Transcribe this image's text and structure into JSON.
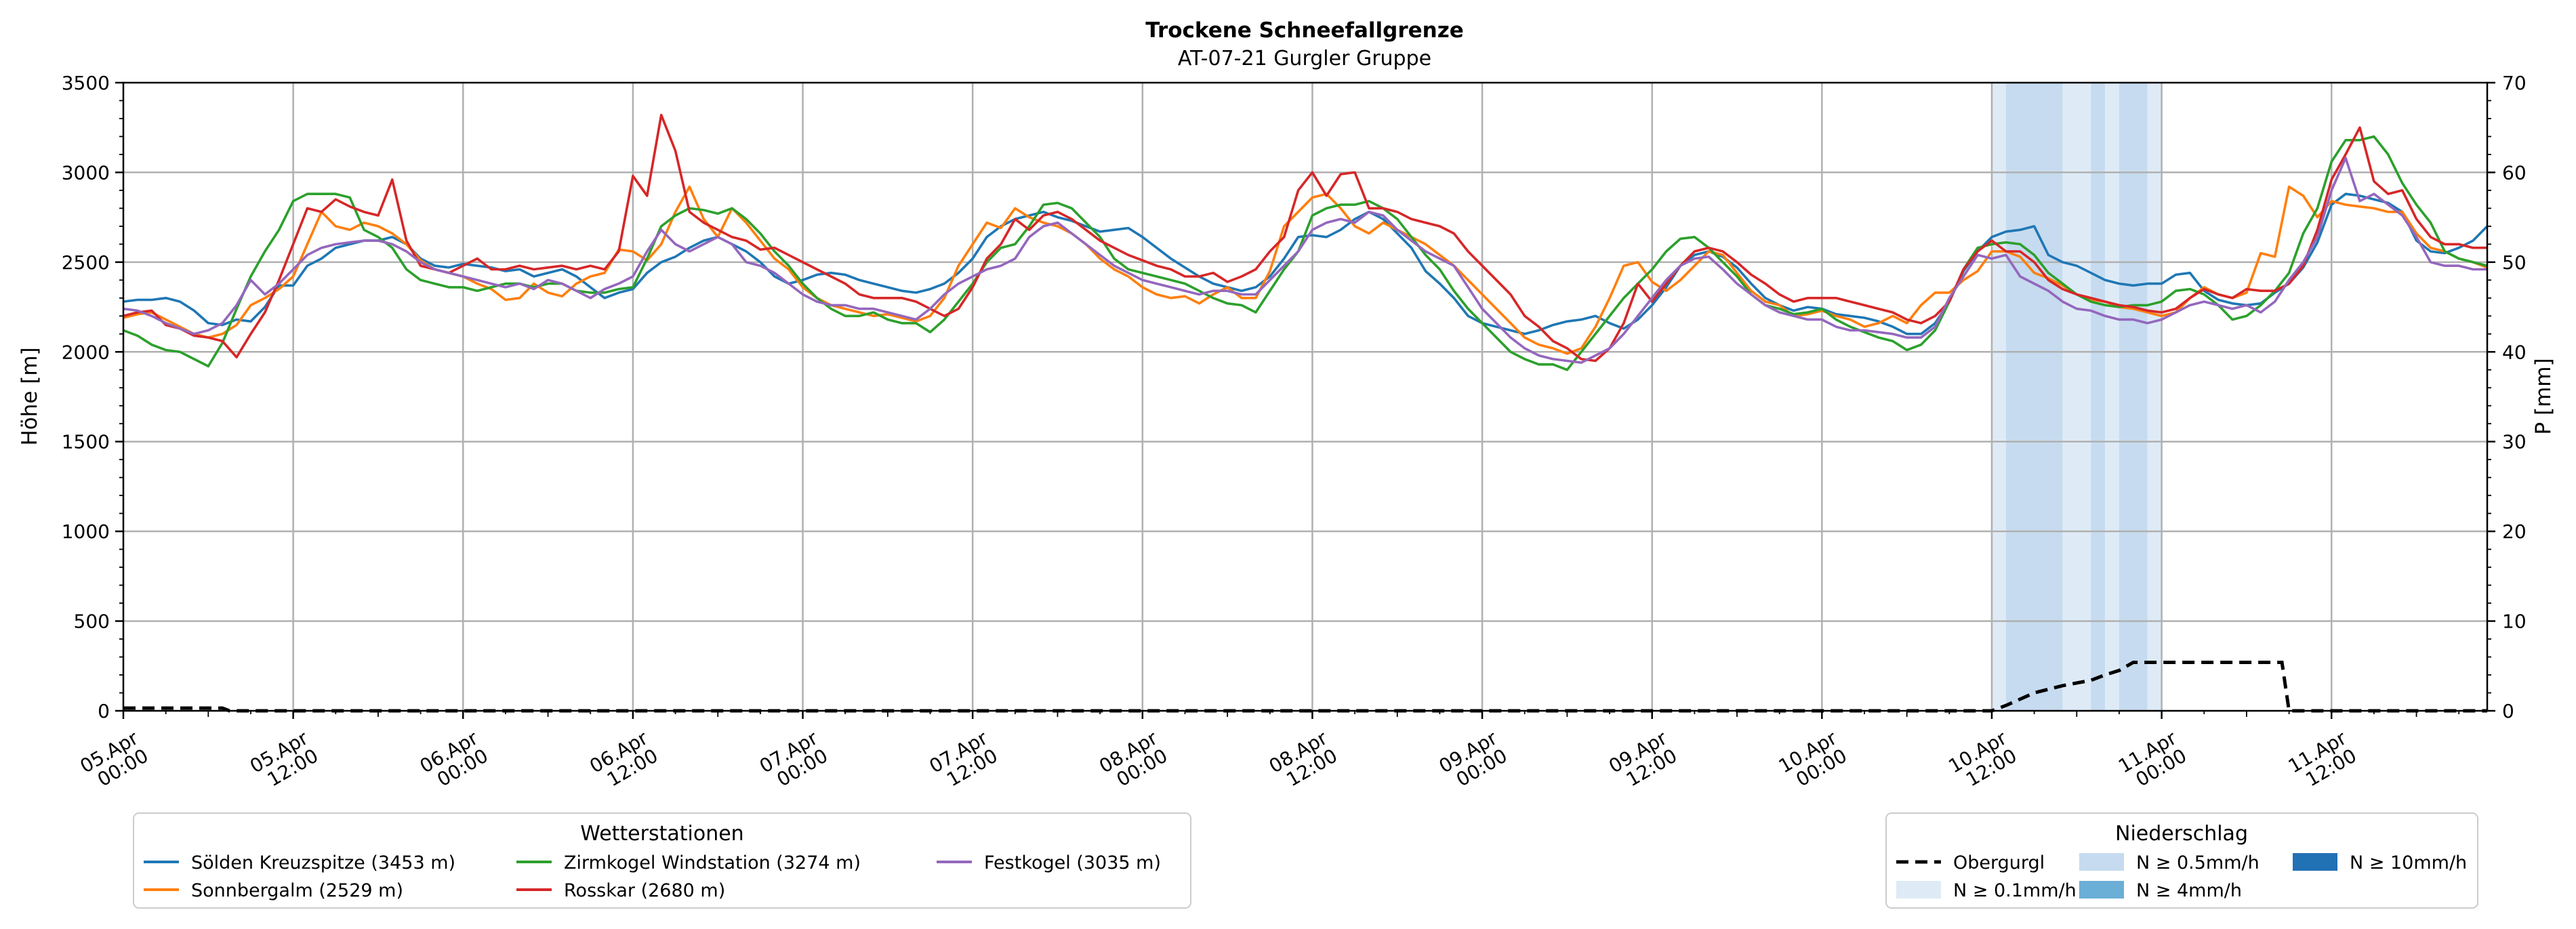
{
  "title": "Trockene Schneefallgrenze",
  "subtitle": "AT-07-21 Gurgler Gruppe",
  "chart_data": {
    "type": "line",
    "ylabel": "Höhe [m]",
    "y2label": "P [mm]",
    "ylim": [
      0,
      3500
    ],
    "y2lim": [
      0,
      70
    ],
    "yticks": [
      0,
      500,
      1000,
      1500,
      2000,
      2500,
      3000,
      3500
    ],
    "y2ticks": [
      0,
      10,
      20,
      30,
      40,
      50,
      60,
      70
    ],
    "xlim_hours": [
      0,
      167
    ],
    "grid": true,
    "x_ticks": [
      {
        "h": 0,
        "date": "05.Apr",
        "time": "00:00"
      },
      {
        "h": 12,
        "date": "05.Apr",
        "time": "12:00"
      },
      {
        "h": 24,
        "date": "06.Apr",
        "time": "00:00"
      },
      {
        "h": 36,
        "date": "06.Apr",
        "time": "12:00"
      },
      {
        "h": 48,
        "date": "07.Apr",
        "time": "00:00"
      },
      {
        "h": 60,
        "date": "07.Apr",
        "time": "12:00"
      },
      {
        "h": 72,
        "date": "08.Apr",
        "time": "00:00"
      },
      {
        "h": 84,
        "date": "08.Apr",
        "time": "12:00"
      },
      {
        "h": 96,
        "date": "09.Apr",
        "time": "00:00"
      },
      {
        "h": 108,
        "date": "09.Apr",
        "time": "12:00"
      },
      {
        "h": 120,
        "date": "10.Apr",
        "time": "00:00"
      },
      {
        "h": 132,
        "date": "10.Apr",
        "time": "12:00"
      },
      {
        "h": 144,
        "date": "11.Apr",
        "time": "00:00"
      },
      {
        "h": 156,
        "date": "11.Apr",
        "time": "12:00"
      }
    ],
    "legend_stations": {
      "title": "Wetterstationen",
      "placement": "bottom-left"
    },
    "legend_precip": {
      "title": "Niederschlag",
      "placement": "bottom-right",
      "entries": [
        {
          "label": "Obergurgl",
          "kind": "dashed-line",
          "color": "#000000"
        },
        {
          "label": "N ≥ 0.1mm/h",
          "kind": "patch",
          "color": "#deebf7"
        },
        {
          "label": "N ≥ 0.5mm/h",
          "kind": "patch",
          "color": "#c6dbef"
        },
        {
          "label": "N ≥ 4mm/h",
          "kind": "patch",
          "color": "#6baed6"
        },
        {
          "label": "N ≥ 10mm/h",
          "kind": "patch",
          "color": "#2171b5"
        }
      ]
    },
    "precip_bands": [
      {
        "start": 132.0,
        "end": 133.0,
        "level": "N ≥ 0.1mm/h"
      },
      {
        "start": 133.0,
        "end": 137.0,
        "level": "N ≥ 0.5mm/h"
      },
      {
        "start": 137.0,
        "end": 139.0,
        "level": "N ≥ 0.1mm/h"
      },
      {
        "start": 139.0,
        "end": 140.0,
        "level": "N ≥ 0.5mm/h"
      },
      {
        "start": 140.0,
        "end": 141.0,
        "level": "N ≥ 0.1mm/h"
      },
      {
        "start": 141.0,
        "end": 143.0,
        "level": "N ≥ 0.5mm/h"
      },
      {
        "start": 143.0,
        "end": 144.0,
        "level": "N ≥ 0.1mm/h"
      }
    ],
    "precip_cumulative": {
      "name": "Obergurgl",
      "points": [
        [
          0,
          0.3
        ],
        [
          7,
          0.3
        ],
        [
          7.5,
          0
        ],
        [
          132,
          0
        ],
        [
          133,
          0.6
        ],
        [
          135,
          2
        ],
        [
          137,
          2.8
        ],
        [
          139,
          3.4
        ],
        [
          140,
          4
        ],
        [
          141,
          4.5
        ],
        [
          142,
          5.4
        ],
        [
          144,
          5.4
        ],
        [
          150,
          5.4
        ],
        [
          152.5,
          5.4
        ],
        [
          153,
          0
        ],
        [
          167,
          0
        ]
      ]
    },
    "series": [
      {
        "name": "Sölden Kreuzspitze (3453 m)",
        "color": "#1f77b4",
        "values": [
          2280,
          2290,
          2290,
          2300,
          2280,
          2230,
          2160,
          2150,
          2180,
          2170,
          2250,
          2370,
          2370,
          2480,
          2520,
          2580,
          2600,
          2620,
          2620,
          2640,
          2600,
          2520,
          2480,
          2470,
          2490,
          2480,
          2470,
          2450,
          2460,
          2420,
          2440,
          2460,
          2420,
          2360,
          2300,
          2330,
          2350,
          2440,
          2500,
          2530,
          2580,
          2620,
          2640,
          2600,
          2560,
          2500,
          2420,
          2380,
          2400,
          2430,
          2440,
          2430,
          2400,
          2380,
          2360,
          2340,
          2330,
          2350,
          2380,
          2440,
          2520,
          2640,
          2700,
          2740,
          2760,
          2780,
          2750,
          2730,
          2700,
          2670,
          2680,
          2690,
          2640,
          2580,
          2520,
          2470,
          2420,
          2380,
          2360,
          2340,
          2360,
          2420,
          2520,
          2640,
          2650,
          2640,
          2680,
          2740,
          2780,
          2740,
          2660,
          2580,
          2450,
          2380,
          2300,
          2200,
          2160,
          2140,
          2120,
          2100,
          2120,
          2150,
          2170,
          2180,
          2200,
          2160,
          2130,
          2180,
          2260,
          2360,
          2480,
          2540,
          2560,
          2530,
          2470,
          2380,
          2300,
          2260,
          2230,
          2250,
          2240,
          2210,
          2200,
          2190,
          2170,
          2140,
          2100,
          2100,
          2160,
          2280,
          2450,
          2560,
          2640,
          2670,
          2680,
          2700,
          2540,
          2500,
          2480,
          2440,
          2400,
          2380,
          2370,
          2380,
          2380,
          2430,
          2440,
          2340,
          2290,
          2270,
          2260,
          2270,
          2330,
          2380,
          2470,
          2610,
          2820,
          2880,
          2870,
          2850,
          2830,
          2780,
          2620,
          2560,
          2550,
          2580,
          2620,
          2700
        ]
      },
      {
        "name": "Sonnbergalm (2529 m)",
        "color": "#ff7f0e",
        "values": [
          2190,
          2210,
          2220,
          2180,
          2140,
          2100,
          2080,
          2100,
          2150,
          2260,
          2300,
          2350,
          2420,
          2600,
          2780,
          2700,
          2680,
          2720,
          2700,
          2660,
          2600,
          2510,
          2460,
          2440,
          2420,
          2380,
          2350,
          2290,
          2300,
          2380,
          2330,
          2310,
          2380,
          2420,
          2440,
          2570,
          2560,
          2510,
          2600,
          2780,
          2920,
          2740,
          2640,
          2800,
          2720,
          2620,
          2520,
          2460,
          2360,
          2300,
          2260,
          2240,
          2220,
          2200,
          2210,
          2190,
          2170,
          2200,
          2300,
          2480,
          2600,
          2720,
          2690,
          2800,
          2750,
          2720,
          2700,
          2660,
          2600,
          2520,
          2460,
          2420,
          2360,
          2320,
          2300,
          2310,
          2270,
          2320,
          2360,
          2300,
          2300,
          2450,
          2700,
          2780,
          2860,
          2880,
          2800,
          2700,
          2660,
          2720,
          2680,
          2640,
          2600,
          2540,
          2480,
          2400,
          2320,
          2240,
          2160,
          2080,
          2040,
          2020,
          1990,
          2020,
          2140,
          2300,
          2480,
          2500,
          2390,
          2340,
          2400,
          2480,
          2560,
          2540,
          2440,
          2340,
          2280,
          2260,
          2200,
          2210,
          2230,
          2200,
          2180,
          2140,
          2160,
          2200,
          2160,
          2260,
          2330,
          2330,
          2400,
          2450,
          2560,
          2560,
          2530,
          2440,
          2410,
          2370,
          2320,
          2290,
          2280,
          2250,
          2240,
          2220,
          2200,
          2220,
          2300,
          2360,
          2320,
          2300,
          2330,
          2550,
          2530,
          2920,
          2870,
          2750,
          2840,
          2820,
          2810,
          2800,
          2780,
          2780,
          2660,
          2580,
          2560,
          2520,
          2500,
          2470
        ]
      },
      {
        "name": "Zirmkogel Windstation (3274 m)",
        "color": "#2ca02c",
        "values": [
          2120,
          2090,
          2040,
          2010,
          2000,
          1960,
          1920,
          2050,
          2240,
          2420,
          2560,
          2680,
          2840,
          2880,
          2880,
          2880,
          2860,
          2680,
          2640,
          2580,
          2460,
          2400,
          2380,
          2360,
          2360,
          2340,
          2360,
          2380,
          2380,
          2360,
          2380,
          2380,
          2340,
          2330,
          2330,
          2350,
          2360,
          2520,
          2700,
          2760,
          2800,
          2790,
          2770,
          2800,
          2740,
          2660,
          2560,
          2480,
          2380,
          2300,
          2240,
          2200,
          2200,
          2220,
          2180,
          2160,
          2160,
          2110,
          2180,
          2280,
          2380,
          2500,
          2580,
          2600,
          2700,
          2820,
          2830,
          2800,
          2720,
          2640,
          2520,
          2460,
          2440,
          2420,
          2400,
          2380,
          2340,
          2300,
          2270,
          2260,
          2220,
          2340,
          2460,
          2560,
          2760,
          2800,
          2820,
          2820,
          2840,
          2800,
          2740,
          2640,
          2540,
          2460,
          2340,
          2240,
          2160,
          2080,
          2000,
          1960,
          1930,
          1930,
          1900,
          2000,
          2100,
          2200,
          2300,
          2380,
          2460,
          2560,
          2630,
          2640,
          2580,
          2500,
          2420,
          2320,
          2260,
          2240,
          2210,
          2220,
          2240,
          2180,
          2140,
          2110,
          2080,
          2060,
          2010,
          2040,
          2120,
          2280,
          2460,
          2580,
          2600,
          2610,
          2600,
          2540,
          2440,
          2380,
          2320,
          2280,
          2260,
          2250,
          2260,
          2260,
          2280,
          2340,
          2350,
          2320,
          2260,
          2180,
          2200,
          2260,
          2340,
          2440,
          2660,
          2800,
          3060,
          3180,
          3180,
          3200,
          3100,
          2940,
          2820,
          2720,
          2560,
          2520,
          2500,
          2480
        ]
      },
      {
        "name": "Rosskar (2680 m)",
        "color": "#d62728",
        "values": [
          2200,
          2220,
          2230,
          2150,
          2130,
          2090,
          2080,
          2060,
          1970,
          2100,
          2220,
          2400,
          2600,
          2800,
          2780,
          2850,
          2810,
          2780,
          2760,
          2960,
          2620,
          2480,
          2460,
          2440,
          2480,
          2520,
          2460,
          2460,
          2480,
          2460,
          2470,
          2480,
          2460,
          2480,
          2460,
          2560,
          2980,
          2870,
          3320,
          3120,
          2780,
          2720,
          2680,
          2640,
          2620,
          2570,
          2580,
          2540,
          2500,
          2460,
          2420,
          2380,
          2320,
          2300,
          2300,
          2300,
          2280,
          2240,
          2200,
          2240,
          2360,
          2520,
          2600,
          2740,
          2680,
          2760,
          2780,
          2740,
          2680,
          2620,
          2580,
          2540,
          2510,
          2480,
          2460,
          2420,
          2420,
          2440,
          2390,
          2420,
          2460,
          2560,
          2640,
          2900,
          3000,
          2870,
          2990,
          3000,
          2800,
          2800,
          2780,
          2740,
          2720,
          2700,
          2660,
          2560,
          2480,
          2400,
          2320,
          2200,
          2140,
          2060,
          2020,
          1960,
          1950,
          2020,
          2160,
          2380,
          2280,
          2380,
          2480,
          2560,
          2580,
          2560,
          2500,
          2430,
          2380,
          2320,
          2280,
          2300,
          2300,
          2300,
          2280,
          2260,
          2240,
          2220,
          2180,
          2160,
          2200,
          2280,
          2460,
          2560,
          2620,
          2560,
          2560,
          2500,
          2400,
          2350,
          2320,
          2300,
          2280,
          2260,
          2250,
          2230,
          2220,
          2240,
          2300,
          2350,
          2320,
          2300,
          2350,
          2340,
          2340,
          2380,
          2480,
          2680,
          2960,
          3100,
          3250,
          2950,
          2880,
          2900,
          2740,
          2640,
          2600,
          2600,
          2580,
          2580
        ]
      },
      {
        "name": "Festkogel (3035 m)",
        "color": "#9467bd",
        "values": [
          2240,
          2230,
          2200,
          2160,
          2130,
          2100,
          2120,
          2160,
          2260,
          2400,
          2320,
          2380,
          2460,
          2540,
          2580,
          2600,
          2610,
          2620,
          2620,
          2600,
          2560,
          2500,
          2460,
          2440,
          2420,
          2400,
          2380,
          2360,
          2380,
          2350,
          2400,
          2380,
          2340,
          2300,
          2350,
          2380,
          2420,
          2560,
          2680,
          2600,
          2560,
          2600,
          2640,
          2600,
          2500,
          2480,
          2440,
          2380,
          2320,
          2280,
          2260,
          2260,
          2240,
          2240,
          2220,
          2200,
          2180,
          2240,
          2320,
          2380,
          2420,
          2460,
          2480,
          2520,
          2640,
          2700,
          2720,
          2660,
          2600,
          2540,
          2480,
          2440,
          2400,
          2380,
          2360,
          2340,
          2320,
          2340,
          2340,
          2320,
          2320,
          2400,
          2480,
          2560,
          2680,
          2720,
          2740,
          2720,
          2780,
          2760,
          2680,
          2620,
          2560,
          2520,
          2480,
          2360,
          2240,
          2160,
          2080,
          2020,
          1980,
          1960,
          1950,
          1940,
          1980,
          2020,
          2100,
          2200,
          2300,
          2400,
          2480,
          2520,
          2530,
          2460,
          2380,
          2320,
          2260,
          2220,
          2200,
          2180,
          2180,
          2140,
          2120,
          2120,
          2110,
          2100,
          2080,
          2080,
          2140,
          2300,
          2420,
          2540,
          2520,
          2540,
          2420,
          2380,
          2340,
          2280,
          2240,
          2230,
          2200,
          2180,
          2180,
          2160,
          2180,
          2220,
          2260,
          2280,
          2260,
          2240,
          2260,
          2220,
          2280,
          2400,
          2500,
          2640,
          2900,
          3080,
          2840,
          2880,
          2820,
          2760,
          2640,
          2500,
          2480,
          2480,
          2460,
          2460
        ]
      }
    ]
  }
}
